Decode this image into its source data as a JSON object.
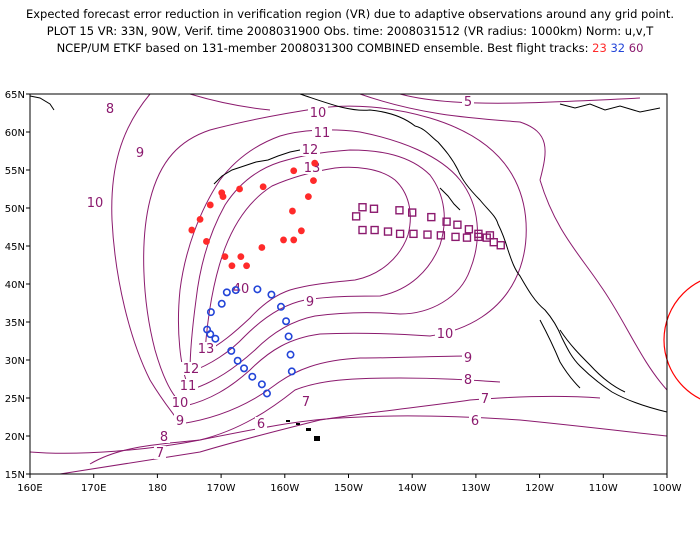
{
  "header": {
    "line1": "Expected forecast error reduction in verification region (VR) due to adaptive observations around any grid point.",
    "line2": "PLOT 15 VR: 33N, 90W, Verif. time 2008031900 Obs. time: 2008031512 (VR radius: 1000km) Norm: u,v,T",
    "line3_text": "NCEP/UM ETKF based on 131-member 2008031300 COMBINED ensemble.  Best flight tracks:",
    "track_ids": [
      "23",
      "32",
      "60"
    ]
  },
  "colors": {
    "contour": "#8b1a6e",
    "coastline": "#000000",
    "track23": "#ff2a2a",
    "track32": "#2345d8",
    "track60": "#8b1a6e",
    "verification_circle": "#ff0000"
  },
  "map": {
    "lat_labels": [
      "65N",
      "60N",
      "55N",
      "50N",
      "45N",
      "40N",
      "35N",
      "30N",
      "25N",
      "20N",
      "15N"
    ],
    "lon_labels": [
      "160E",
      "170E",
      "180",
      "170W",
      "160W",
      "150W",
      "140W",
      "130W",
      "120W",
      "110W",
      "100W"
    ],
    "contour_labels": [
      "5",
      "6",
      "6",
      "7",
      "7",
      "7",
      "8",
      "8",
      "8",
      "9",
      "9",
      "9",
      "9",
      "10",
      "10",
      "10",
      "10",
      "11",
      "11",
      "12",
      "12",
      "13",
      "13",
      "40"
    ],
    "tracks": {
      "track23": {
        "id": "23",
        "marker": "filled-dot",
        "points": [
          [
            -155.3,
            55.9
          ],
          [
            -155.5,
            53.6
          ],
          [
            -158.6,
            54.9
          ],
          [
            -156.3,
            51.5
          ],
          [
            -158.8,
            49.6
          ],
          [
            -157.4,
            47
          ],
          [
            -158.6,
            45.8
          ],
          [
            -160.2,
            45.8
          ],
          [
            -163.6,
            44.8
          ],
          [
            -166.9,
            43.6
          ],
          [
            -168.3,
            42.4
          ],
          [
            -166,
            42.4
          ],
          [
            -169.4,
            43.6
          ],
          [
            -172.3,
            45.6
          ],
          [
            -174.6,
            47.1
          ],
          [
            -173.3,
            48.5
          ],
          [
            -171.7,
            50.4
          ],
          [
            -169.9,
            52
          ],
          [
            -169.7,
            51.5
          ],
          [
            -167.1,
            52.5
          ],
          [
            -163.4,
            52.8
          ]
        ]
      },
      "track32": {
        "id": "32",
        "marker": "open-circle",
        "points": [
          [
            -169.1,
            38.9
          ],
          [
            -167.7,
            39.2
          ],
          [
            -164.3,
            39.3
          ],
          [
            -162.1,
            38.6
          ],
          [
            -169.9,
            37.4
          ],
          [
            -171.6,
            36.3
          ],
          [
            -160.6,
            37
          ],
          [
            -159.8,
            35.1
          ],
          [
            -172.2,
            34
          ],
          [
            -171.7,
            33.4
          ],
          [
            -170.9,
            32.8
          ],
          [
            -159.4,
            33.1
          ],
          [
            -168.4,
            31.2
          ],
          [
            -159.1,
            30.7
          ],
          [
            -167.4,
            29.9
          ],
          [
            -166.4,
            28.9
          ],
          [
            -165.1,
            27.8
          ],
          [
            -158.9,
            28.5
          ],
          [
            -163.6,
            26.8
          ],
          [
            -162.8,
            25.6
          ]
        ]
      },
      "track60": {
        "id": "60",
        "marker": "open-square",
        "points": [
          [
            -147.8,
            50.1
          ],
          [
            -146,
            49.9
          ],
          [
            -142,
            49.7
          ],
          [
            -140,
            49.4
          ],
          [
            -137,
            48.8
          ],
          [
            -134.6,
            48.2
          ],
          [
            -132.9,
            47.8
          ],
          [
            -131.1,
            47.2
          ],
          [
            -129.6,
            46.6
          ],
          [
            -128.3,
            46.1
          ],
          [
            -127.2,
            45.5
          ],
          [
            -126.1,
            45.1
          ],
          [
            -127.8,
            46.4
          ],
          [
            -129.6,
            46.2
          ],
          [
            -131.4,
            46.1
          ],
          [
            -133.2,
            46.2
          ],
          [
            -135.5,
            46.4
          ],
          [
            -137.6,
            46.5
          ],
          [
            -139.8,
            46.6
          ],
          [
            -141.9,
            46.6
          ],
          [
            -143.8,
            46.9
          ],
          [
            -145.9,
            47.1
          ],
          [
            -147.8,
            47.1
          ],
          [
            -148.8,
            48.9
          ]
        ]
      }
    },
    "verification_region": {
      "lat": 33,
      "lon": -90,
      "radius_km": 1000
    }
  }
}
